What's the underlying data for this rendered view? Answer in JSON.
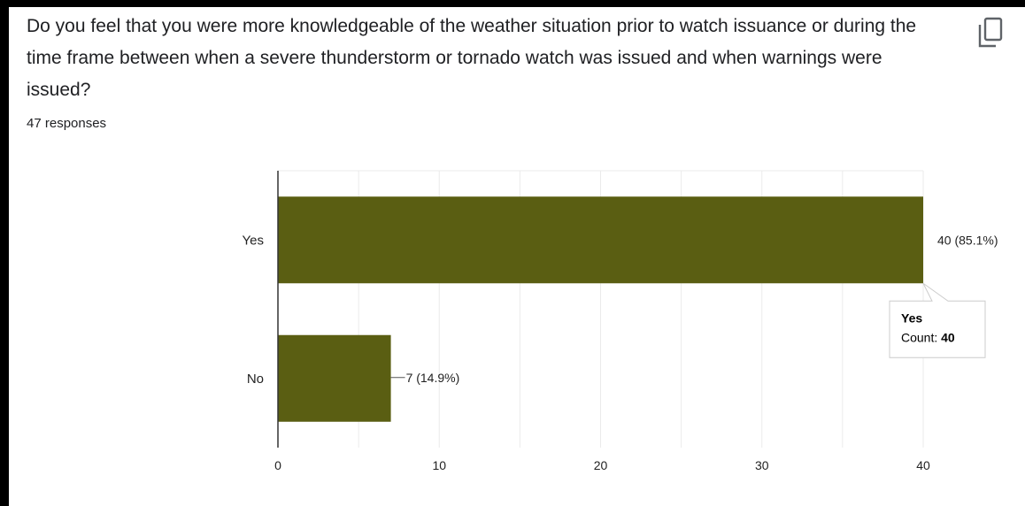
{
  "question": {
    "text": "Do you feel that you were more knowledgeable of the weather situation prior to watch issuance or during the time frame between when a severe thunderstorm or tornado watch was issued and when warnings were issued?",
    "responses_count": "47 responses"
  },
  "icons": {
    "copy": "copy-icon"
  },
  "colors": {
    "bar": "#5a5e12",
    "text": "#202124",
    "grid": "#ebebeb"
  },
  "chart_data": {
    "type": "bar",
    "orientation": "horizontal",
    "categories": [
      "Yes",
      "No"
    ],
    "values": [
      40,
      7
    ],
    "data_labels": [
      "40 (85.1%)",
      "7 (14.9%)"
    ],
    "xlim": [
      0,
      40
    ],
    "xticks": [
      0,
      10,
      20,
      30,
      40
    ],
    "grid": true,
    "tooltip": {
      "category": "Yes",
      "label": "Count:",
      "value": "40"
    }
  }
}
